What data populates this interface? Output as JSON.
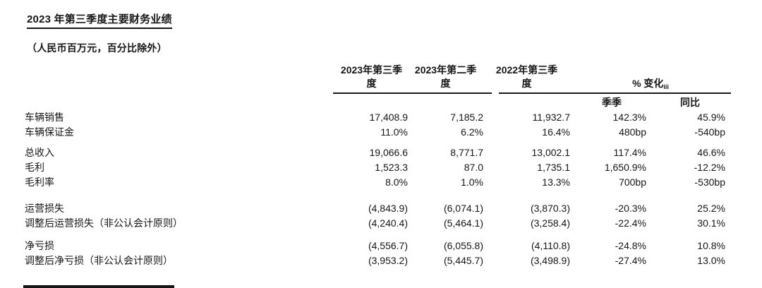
{
  "page": {
    "title": "2023 年第三季度主要财务业绩",
    "subtitle": "（人民币百万元，百分比除外）"
  },
  "table": {
    "column_headers": [
      "2023年第三季\n度",
      "2023年第二季\n度",
      "2022年第三季\n度"
    ],
    "change_header": {
      "label": "% 变化",
      "superscript": "iii"
    },
    "change_subheaders": {
      "qoq": "季季",
      "yoy": "同比"
    },
    "rows": [
      {
        "label": "车辆销售",
        "q3_2023": "17,408.9",
        "q2_2023": "7,185.2",
        "q3_2022": "11,932.7",
        "qoq": "142.3%",
        "yoy": "45.9%"
      },
      {
        "label": "车辆保证金",
        "q3_2023": "11.0%",
        "q2_2023": "6.2%",
        "q3_2022": "16.4%",
        "qoq": "480bp",
        "yoy": "-540bp"
      },
      {
        "label": "总收入",
        "q3_2023": "19,066.6",
        "q2_2023": "8,771.7",
        "q3_2022": "13,002.1",
        "qoq": "117.4%",
        "yoy": "46.6%"
      },
      {
        "label": "毛利",
        "q3_2023": "1,523.3",
        "q2_2023": "87.0",
        "q3_2022": "1,735.1",
        "qoq": "1,650.9%",
        "yoy": "-12.2%"
      },
      {
        "label": "毛利率",
        "q3_2023": "8.0%",
        "q2_2023": "1.0%",
        "q3_2022": "13.3%",
        "qoq": "700bp",
        "yoy": "-530bp"
      },
      {
        "label": "运营损失",
        "q3_2023": "(4,843.9)",
        "q2_2023": "(6,074.1)",
        "q3_2022": "(3,870.3)",
        "qoq": "-20.3%",
        "yoy": "25.2%"
      },
      {
        "label": "调整后运营损失（非公认会计原则）",
        "q3_2023": "(4,240.4)",
        "q2_2023": "(5,464.1)",
        "q3_2022": "(3,258.4)",
        "qoq": "-22.4%",
        "yoy": "30.1%"
      },
      {
        "label": "净亏损",
        "q3_2023": "(4,556.7)",
        "q2_2023": "(6,055.8)",
        "q3_2022": "(4,110.8)",
        "qoq": "-24.8%",
        "yoy": "10.8%"
      },
      {
        "label": "调整后净亏损（非公认会计原则）",
        "q3_2023": "(3,953.2)",
        "q2_2023": "(5,445.7)",
        "q3_2022": "(3,498.9)",
        "qoq": "-27.4%",
        "yoy": "13.0%"
      }
    ]
  }
}
